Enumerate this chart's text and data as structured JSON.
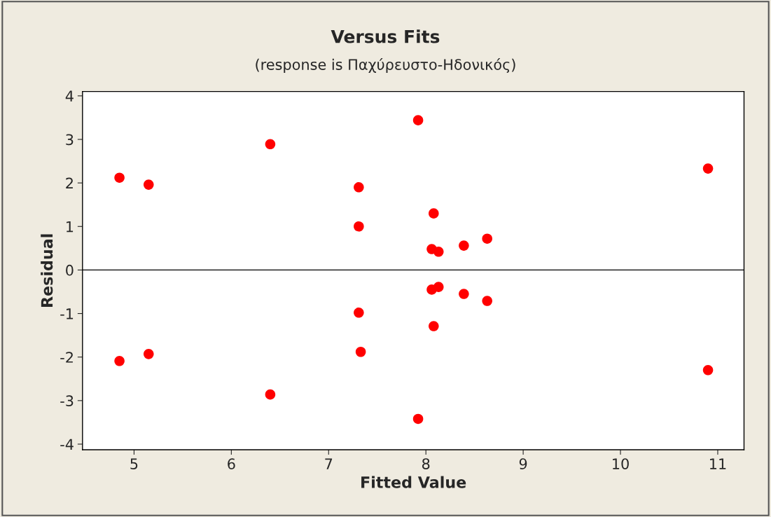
{
  "chart_data": {
    "type": "scatter",
    "title": "Versus Fits",
    "subtitle": "(response is Παχύρευστο-Ηδονικός)",
    "xlabel": "Fitted Value",
    "ylabel": "Residual",
    "x": [
      4.85,
      4.85,
      5.15,
      5.15,
      6.4,
      6.4,
      7.31,
      7.31,
      7.31,
      7.33,
      7.92,
      7.92,
      8.08,
      8.08,
      8.06,
      8.06,
      8.13,
      8.13,
      8.39,
      8.39,
      8.63,
      8.63,
      10.9,
      10.9
    ],
    "series": [
      {
        "color": "#ff0000",
        "values": [
          2.12,
          -2.09,
          1.96,
          -1.93,
          2.89,
          -2.86,
          1.9,
          1.0,
          -0.98,
          -1.88,
          3.44,
          -3.42,
          1.3,
          -1.29,
          0.48,
          -0.45,
          0.42,
          -0.39,
          0.56,
          -0.55,
          0.72,
          -0.71,
          2.33,
          -2.3
        ]
      }
    ],
    "xlim": [
      4.47,
      11.27
    ],
    "ylim": [
      -4.13,
      4.1
    ],
    "xticks": [
      5,
      6,
      7,
      8,
      9,
      10,
      11
    ],
    "yticks": [
      -4,
      -3,
      -2,
      -1,
      0,
      1,
      2,
      3,
      4
    ],
    "ref_lines": [
      {
        "axis": "y",
        "value": 0,
        "color": "#000000"
      }
    ],
    "marker": "circle",
    "grid": false,
    "legend": false
  }
}
